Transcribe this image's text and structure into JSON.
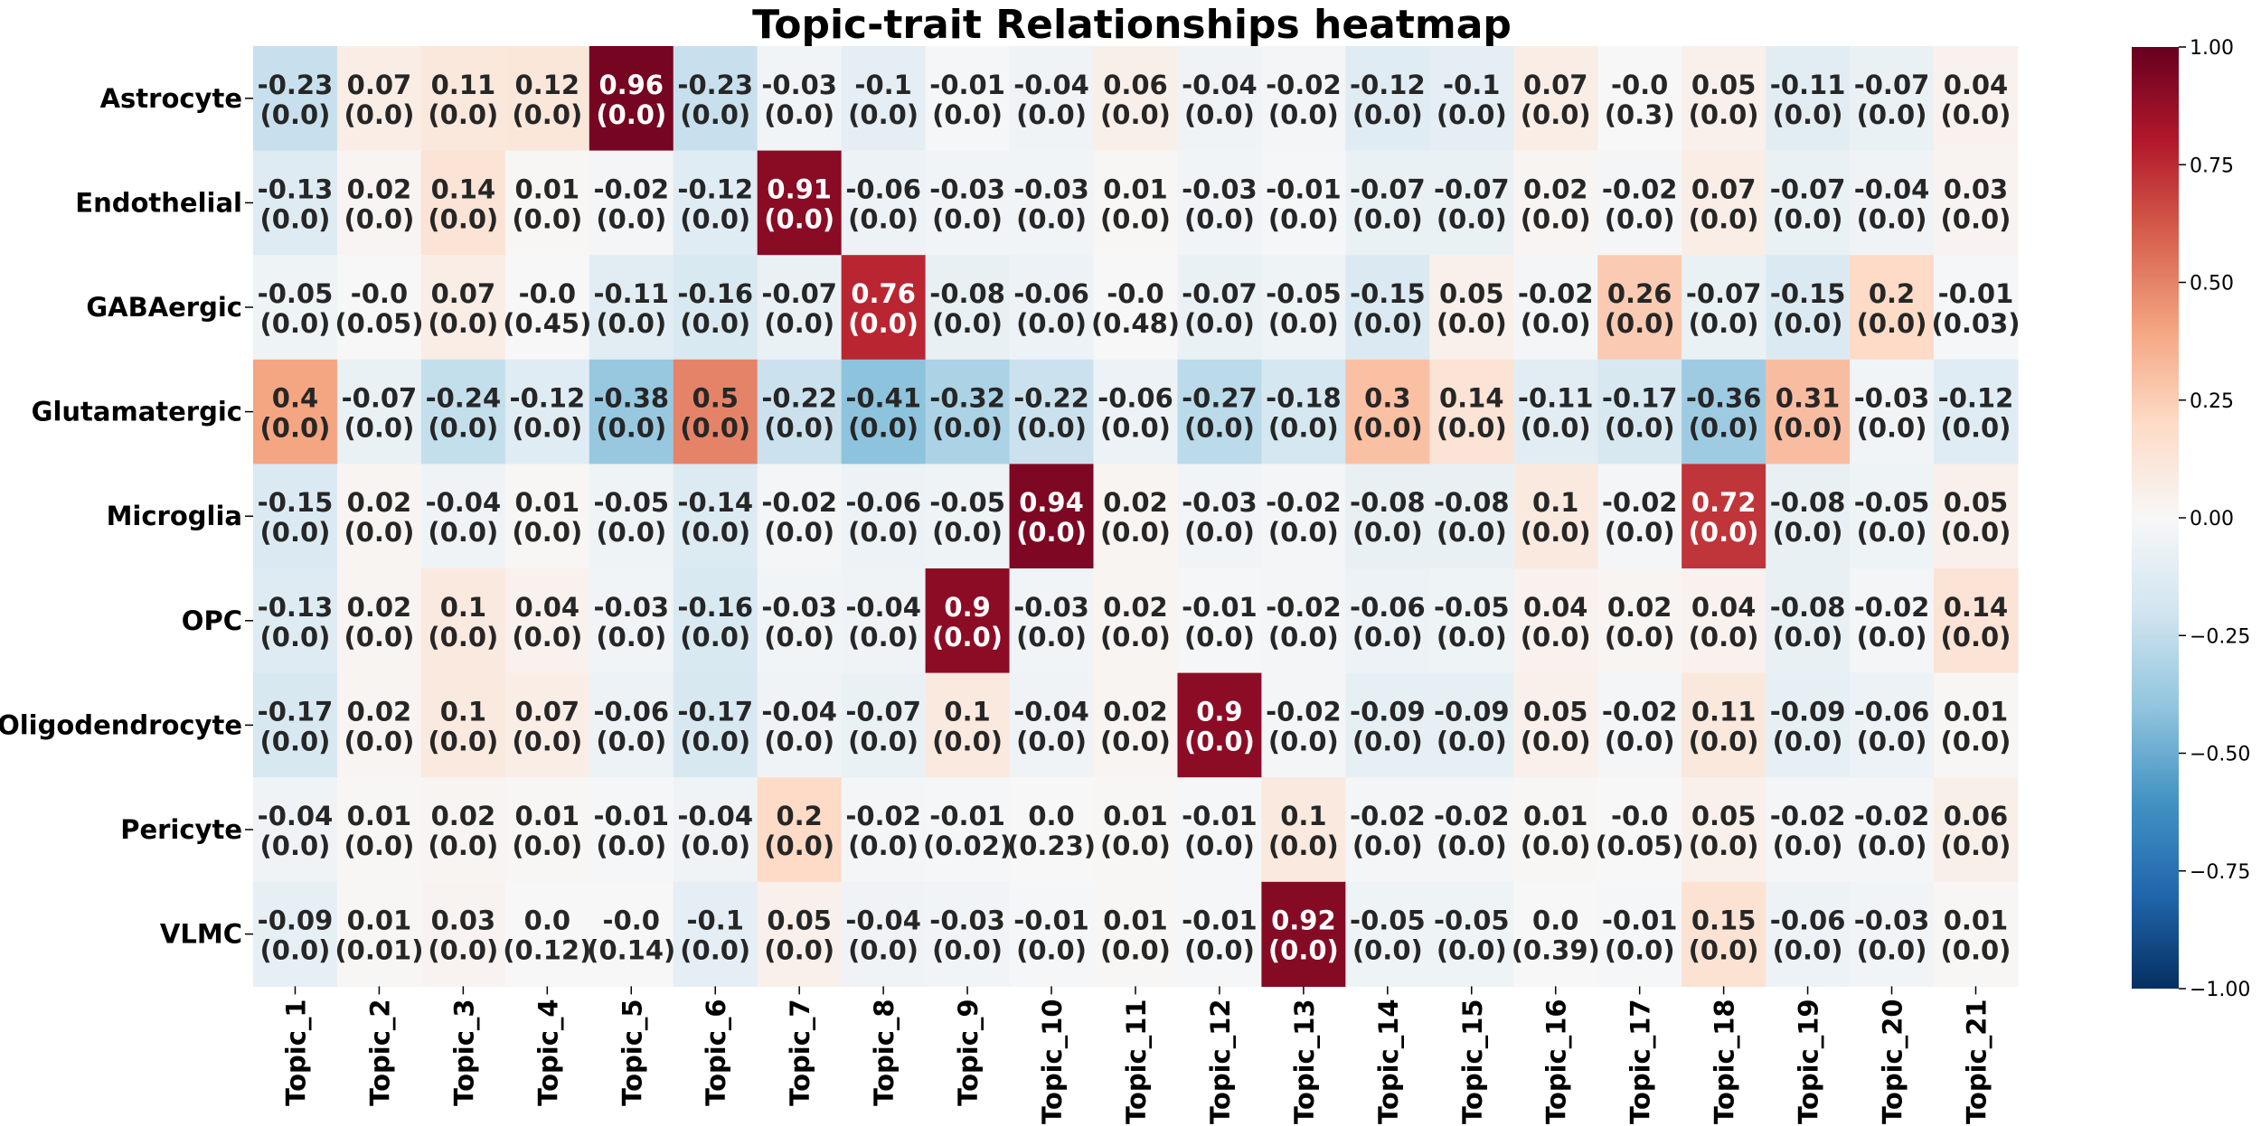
{
  "chart_data": {
    "type": "heatmap",
    "title": "Topic-trait Relationships heatmap",
    "rows": [
      "Astrocyte",
      "Endothelial",
      "GABAergic",
      "Glutamatergic",
      "Microglia",
      "OPC",
      "Oligodendrocyte",
      "Pericyte",
      "VLMC"
    ],
    "columns": [
      "Topic_1",
      "Topic_2",
      "Topic_3",
      "Topic_4",
      "Topic_5",
      "Topic_6",
      "Topic_7",
      "Topic_8",
      "Topic_9",
      "Topic_10",
      "Topic_11",
      "Topic_12",
      "Topic_13",
      "Topic_14",
      "Topic_15",
      "Topic_16",
      "Topic_17",
      "Topic_18",
      "Topic_19",
      "Topic_20",
      "Topic_21"
    ],
    "values": [
      [
        "-0.23",
        "0.07",
        "0.11",
        "0.12",
        "0.96",
        "-0.23",
        "-0.03",
        "-0.1",
        "-0.01",
        "-0.04",
        "0.06",
        "-0.04",
        "-0.02",
        "-0.12",
        "-0.1",
        "0.07",
        "-0.0",
        "0.05",
        "-0.11",
        "-0.07",
        "0.04"
      ],
      [
        "-0.13",
        "0.02",
        "0.14",
        "0.01",
        "-0.02",
        "-0.12",
        "0.91",
        "-0.06",
        "-0.03",
        "-0.03",
        "0.01",
        "-0.03",
        "-0.01",
        "-0.07",
        "-0.07",
        "0.02",
        "-0.02",
        "0.07",
        "-0.07",
        "-0.04",
        "0.03"
      ],
      [
        "-0.05",
        "-0.0",
        "0.07",
        "-0.0",
        "-0.11",
        "-0.16",
        "-0.07",
        "0.76",
        "-0.08",
        "-0.06",
        "-0.0",
        "-0.07",
        "-0.05",
        "-0.15",
        "0.05",
        "-0.02",
        "0.26",
        "-0.07",
        "-0.15",
        "0.2",
        "-0.01"
      ],
      [
        "0.4",
        "-0.07",
        "-0.24",
        "-0.12",
        "-0.38",
        "0.5",
        "-0.22",
        "-0.41",
        "-0.32",
        "-0.22",
        "-0.06",
        "-0.27",
        "-0.18",
        "0.3",
        "0.14",
        "-0.11",
        "-0.17",
        "-0.36",
        "0.31",
        "-0.03",
        "-0.12"
      ],
      [
        "-0.15",
        "0.02",
        "-0.04",
        "0.01",
        "-0.05",
        "-0.14",
        "-0.02",
        "-0.06",
        "-0.05",
        "0.94",
        "0.02",
        "-0.03",
        "-0.02",
        "-0.08",
        "-0.08",
        "0.1",
        "-0.02",
        "0.72",
        "-0.08",
        "-0.05",
        "0.05"
      ],
      [
        "-0.13",
        "0.02",
        "0.1",
        "0.04",
        "-0.03",
        "-0.16",
        "-0.03",
        "-0.04",
        "0.9",
        "-0.03",
        "0.02",
        "-0.01",
        "-0.02",
        "-0.06",
        "-0.05",
        "0.04",
        "0.02",
        "0.04",
        "-0.08",
        "-0.02",
        "0.14"
      ],
      [
        "-0.17",
        "0.02",
        "0.1",
        "0.07",
        "-0.06",
        "-0.17",
        "-0.04",
        "-0.07",
        "0.1",
        "-0.04",
        "0.02",
        "0.9",
        "-0.02",
        "-0.09",
        "-0.09",
        "0.05",
        "-0.02",
        "0.11",
        "-0.09",
        "-0.06",
        "0.01"
      ],
      [
        "-0.04",
        "0.01",
        "0.02",
        "0.01",
        "-0.01",
        "-0.04",
        "0.2",
        "-0.02",
        "-0.01",
        "0.0",
        "0.01",
        "-0.01",
        "0.1",
        "-0.02",
        "-0.02",
        "0.01",
        "-0.0",
        "0.05",
        "-0.02",
        "-0.02",
        "0.06"
      ],
      [
        "-0.09",
        "0.01",
        "0.03",
        "0.0",
        "-0.0",
        "-0.1",
        "0.05",
        "-0.04",
        "-0.03",
        "-0.01",
        "0.01",
        "-0.01",
        "0.92",
        "-0.05",
        "-0.05",
        "0.0",
        "-0.01",
        "0.15",
        "-0.06",
        "-0.03",
        "0.01"
      ]
    ],
    "pvalues": [
      [
        "(0.0)",
        "(0.0)",
        "(0.0)",
        "(0.0)",
        "(0.0)",
        "(0.0)",
        "(0.0)",
        "(0.0)",
        "(0.0)",
        "(0.0)",
        "(0.0)",
        "(0.0)",
        "(0.0)",
        "(0.0)",
        "(0.0)",
        "(0.0)",
        "(0.3)",
        "(0.0)",
        "(0.0)",
        "(0.0)",
        "(0.0)"
      ],
      [
        "(0.0)",
        "(0.0)",
        "(0.0)",
        "(0.0)",
        "(0.0)",
        "(0.0)",
        "(0.0)",
        "(0.0)",
        "(0.0)",
        "(0.0)",
        "(0.0)",
        "(0.0)",
        "(0.0)",
        "(0.0)",
        "(0.0)",
        "(0.0)",
        "(0.0)",
        "(0.0)",
        "(0.0)",
        "(0.0)",
        "(0.0)"
      ],
      [
        "(0.0)",
        "(0.05)",
        "(0.0)",
        "(0.45)",
        "(0.0)",
        "(0.0)",
        "(0.0)",
        "(0.0)",
        "(0.0)",
        "(0.0)",
        "(0.48)",
        "(0.0)",
        "(0.0)",
        "(0.0)",
        "(0.0)",
        "(0.0)",
        "(0.0)",
        "(0.0)",
        "(0.0)",
        "(0.0)",
        "(0.03)"
      ],
      [
        "(0.0)",
        "(0.0)",
        "(0.0)",
        "(0.0)",
        "(0.0)",
        "(0.0)",
        "(0.0)",
        "(0.0)",
        "(0.0)",
        "(0.0)",
        "(0.0)",
        "(0.0)",
        "(0.0)",
        "(0.0)",
        "(0.0)",
        "(0.0)",
        "(0.0)",
        "(0.0)",
        "(0.0)",
        "(0.0)",
        "(0.0)"
      ],
      [
        "(0.0)",
        "(0.0)",
        "(0.0)",
        "(0.0)",
        "(0.0)",
        "(0.0)",
        "(0.0)",
        "(0.0)",
        "(0.0)",
        "(0.0)",
        "(0.0)",
        "(0.0)",
        "(0.0)",
        "(0.0)",
        "(0.0)",
        "(0.0)",
        "(0.0)",
        "(0.0)",
        "(0.0)",
        "(0.0)",
        "(0.0)"
      ],
      [
        "(0.0)",
        "(0.0)",
        "(0.0)",
        "(0.0)",
        "(0.0)",
        "(0.0)",
        "(0.0)",
        "(0.0)",
        "(0.0)",
        "(0.0)",
        "(0.0)",
        "(0.0)",
        "(0.0)",
        "(0.0)",
        "(0.0)",
        "(0.0)",
        "(0.0)",
        "(0.0)",
        "(0.0)",
        "(0.0)",
        "(0.0)"
      ],
      [
        "(0.0)",
        "(0.0)",
        "(0.0)",
        "(0.0)",
        "(0.0)",
        "(0.0)",
        "(0.0)",
        "(0.0)",
        "(0.0)",
        "(0.0)",
        "(0.0)",
        "(0.0)",
        "(0.0)",
        "(0.0)",
        "(0.0)",
        "(0.0)",
        "(0.0)",
        "(0.0)",
        "(0.0)",
        "(0.0)",
        "(0.0)"
      ],
      [
        "(0.0)",
        "(0.0)",
        "(0.0)",
        "(0.0)",
        "(0.0)",
        "(0.0)",
        "(0.0)",
        "(0.0)",
        "(0.02)",
        "(0.23)",
        "(0.0)",
        "(0.0)",
        "(0.0)",
        "(0.0)",
        "(0.0)",
        "(0.0)",
        "(0.05)",
        "(0.0)",
        "(0.0)",
        "(0.0)",
        "(0.0)"
      ],
      [
        "(0.0)",
        "(0.01)",
        "(0.0)",
        "(0.12)",
        "(0.14)",
        "(0.0)",
        "(0.0)",
        "(0.0)",
        "(0.0)",
        "(0.0)",
        "(0.0)",
        "(0.0)",
        "(0.0)",
        "(0.0)",
        "(0.0)",
        "(0.39)",
        "(0.0)",
        "(0.0)",
        "(0.0)",
        "(0.0)",
        "(0.0)"
      ]
    ],
    "colorbar": {
      "colormap": "RdBu_r",
      "range": [
        -1.0,
        1.0
      ],
      "ticks": [
        "1.00",
        "0.75",
        "0.50",
        "0.25",
        "0.00",
        "−0.25",
        "−0.50",
        "−0.75",
        "−1.00"
      ]
    },
    "grid": false,
    "legend": "right"
  }
}
